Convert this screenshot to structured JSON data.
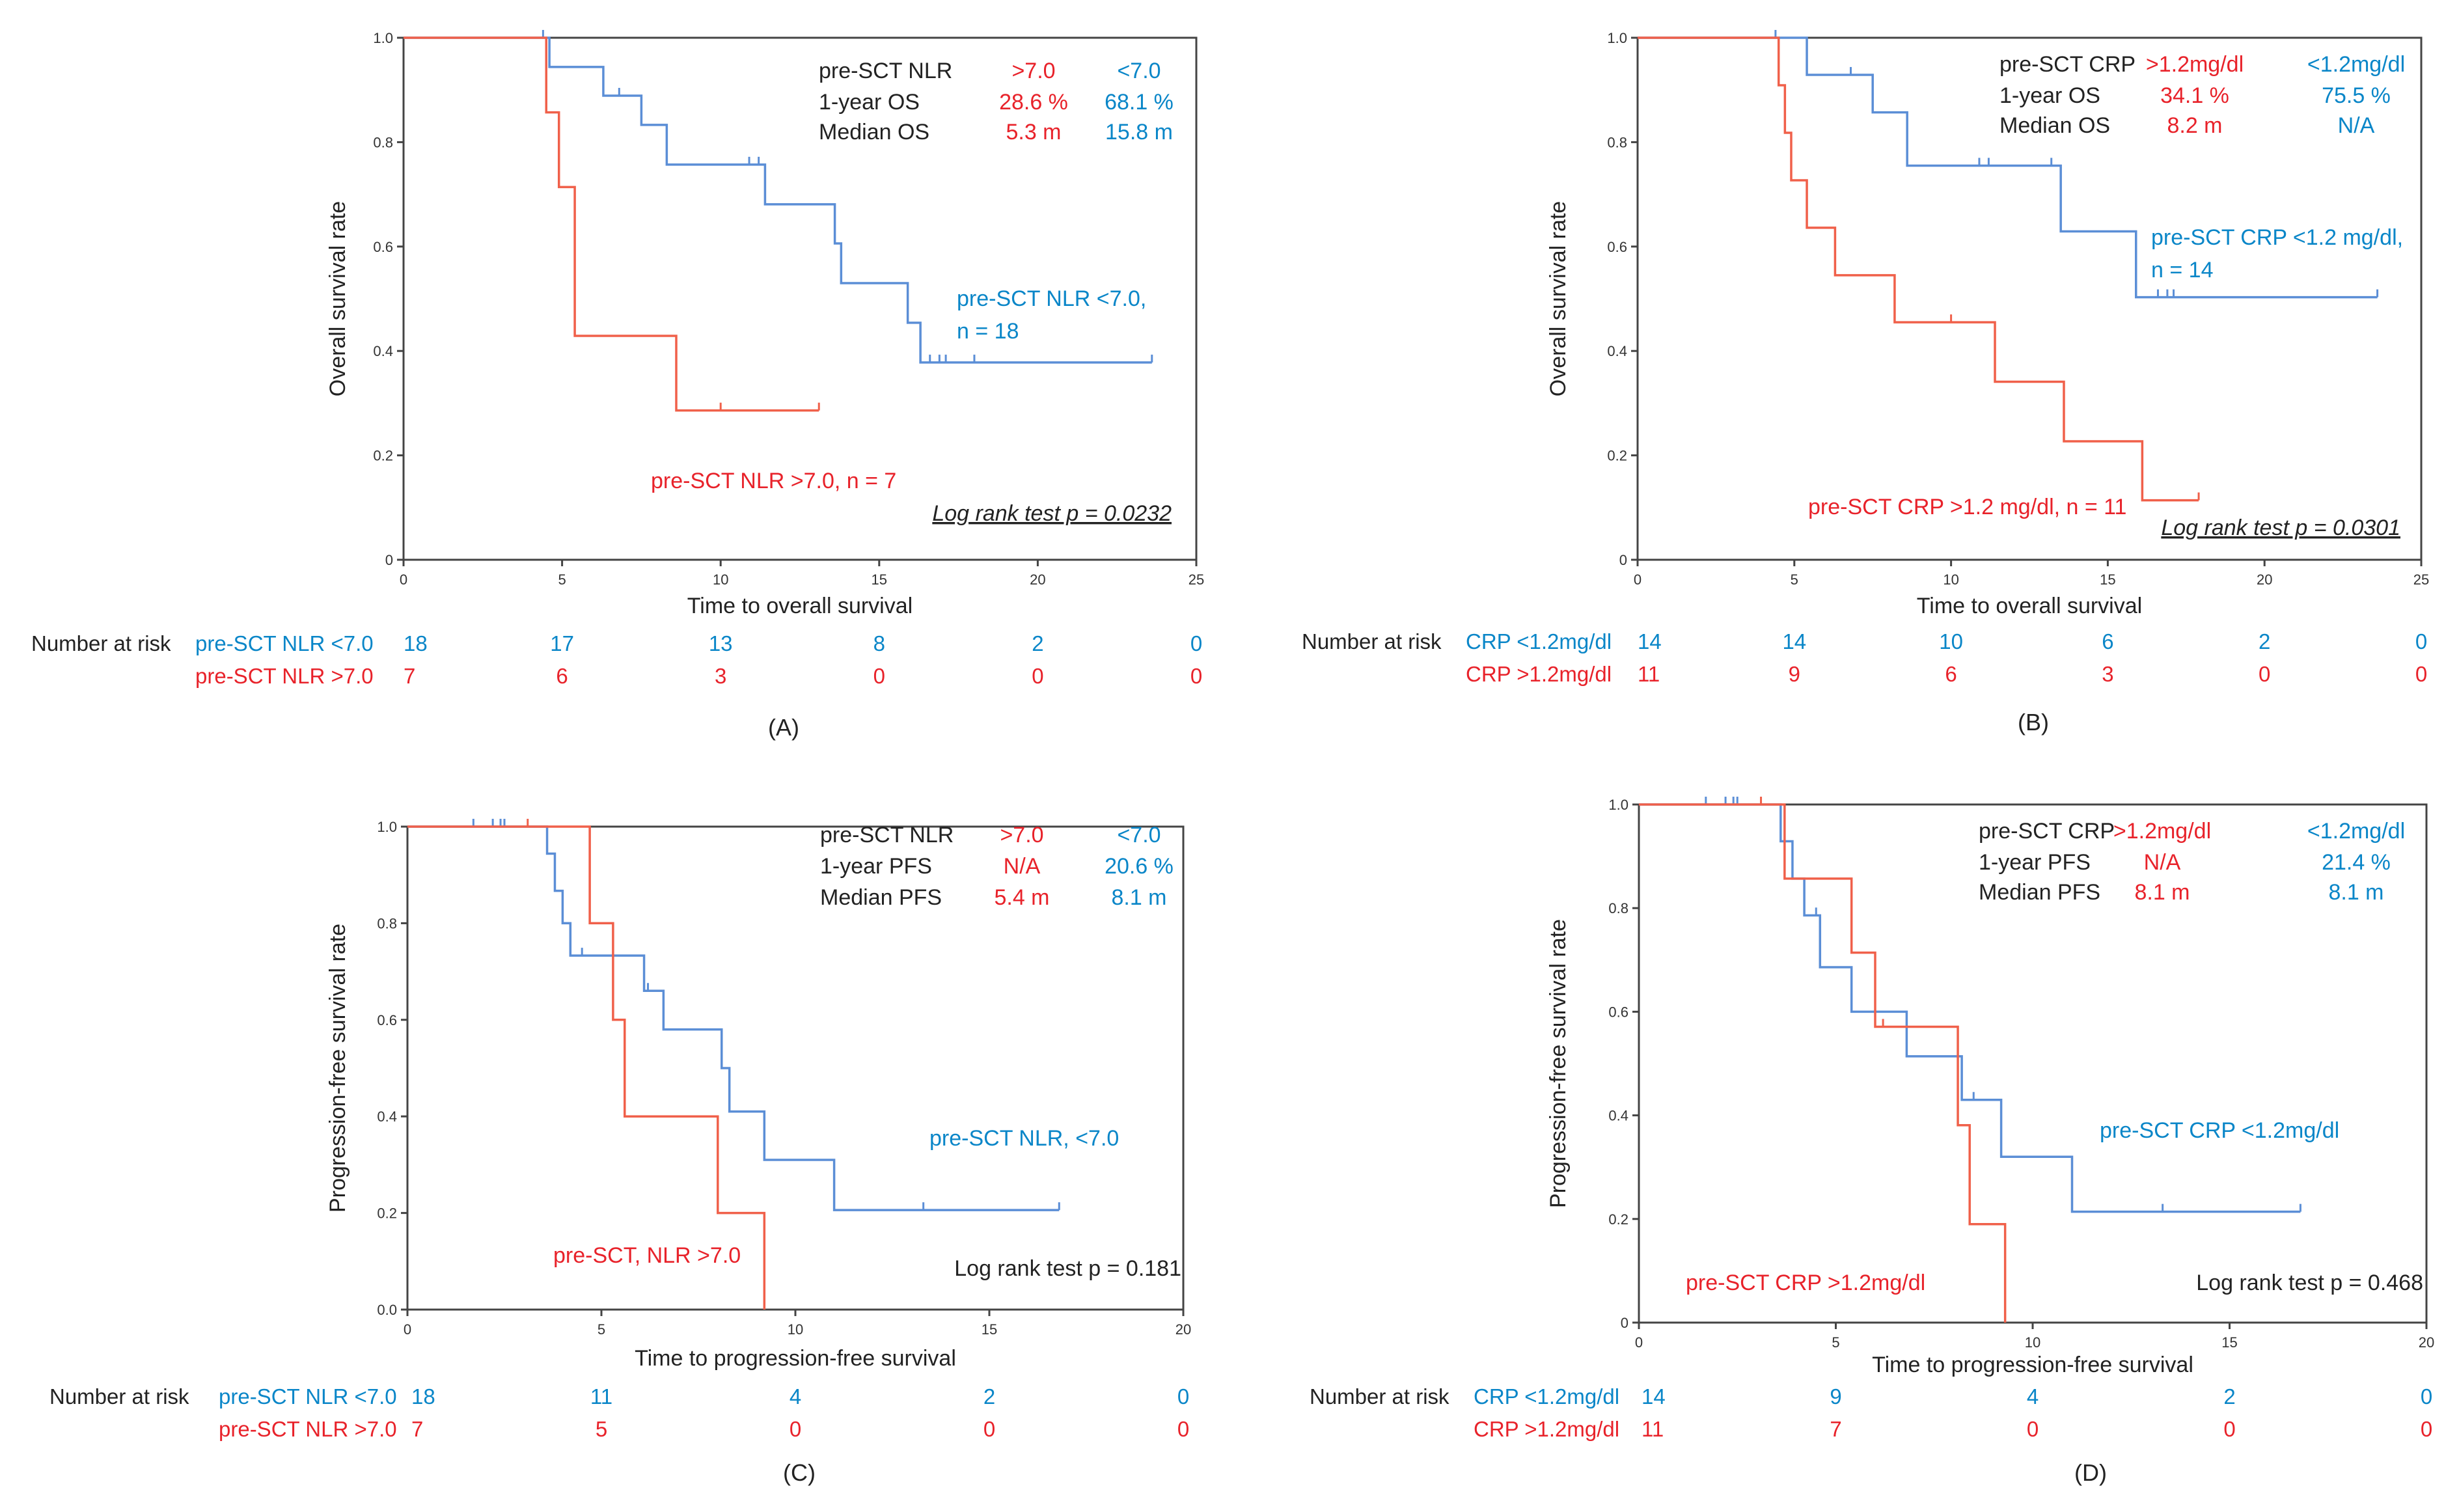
{
  "chart_data": [
    {
      "type": "line",
      "step": true,
      "panel_label": "(A)",
      "ylabel": "Overall survival rate",
      "xlabel": "Time to overall survival",
      "xlim": [
        0,
        25
      ],
      "ylim": [
        0,
        1
      ],
      "xticks": [
        "0",
        "5",
        "10",
        "15",
        "20",
        "25"
      ],
      "yticks": [
        "0",
        "0.2",
        "0.4",
        "0.6",
        "0.8",
        "1.0"
      ],
      "legend_table": [
        [
          "pre-SCT NLR",
          ">7.0",
          "<7.0"
        ],
        [
          "1-year OS",
          "28.6 %",
          "68.1 %"
        ],
        [
          "Median OS",
          "5.3 m",
          "15.8 m"
        ]
      ],
      "series": [
        {
          "name": "pre-SCT NLR <7.0, n = 18",
          "label_lines": [
            "pre-SCT NLR <7.0,",
            "n = 18"
          ],
          "color": "#0a86c8",
          "x": [
            0,
            4.6,
            6.3,
            7.5,
            8.3,
            11.4,
            13.6,
            13.8,
            15.9,
            16.3,
            23.6
          ],
          "y": [
            1.0,
            0.944,
            0.889,
            0.833,
            0.757,
            0.681,
            0.606,
            0.53,
            0.454,
            0.378,
            0.378
          ],
          "censored": [
            [
              4.4,
              1.0
            ],
            [
              6.8,
              0.889
            ],
            [
              10.9,
              0.757
            ],
            [
              11.2,
              0.757
            ],
            [
              16.6,
              0.378
            ],
            [
              16.9,
              0.378
            ],
            [
              17.1,
              0.378
            ],
            [
              18.0,
              0.378
            ],
            [
              23.6,
              0.378
            ]
          ]
        },
        {
          "name": "pre-SCT NLR >7.0, n = 7",
          "label_lines": [
            "pre-SCT NLR >7.0, n = 7"
          ],
          "color": "#e8222a",
          "x": [
            0,
            4.5,
            4.9,
            5.4,
            8.6,
            13.1
          ],
          "y": [
            1.0,
            0.857,
            0.714,
            0.429,
            0.286,
            0.286
          ],
          "censored": [
            [
              10.0,
              0.286
            ],
            [
              13.1,
              0.286
            ]
          ]
        }
      ],
      "annotation": "Log rank test p = 0.0232",
      "risk_table": {
        "title": "Number at risk",
        "times": [
          0,
          5,
          10,
          15,
          20,
          25
        ],
        "rows": [
          {
            "label": "pre-SCT NLR <7.0",
            "color": "#0a86c8",
            "values": [
              "18",
              "17",
              "13",
              "8",
              "2",
              "0"
            ]
          },
          {
            "label": "pre-SCT NLR >7.0",
            "color": "#e8222a",
            "values": [
              "7",
              "6",
              "3",
              "0",
              "0",
              "0"
            ]
          }
        ]
      }
    },
    {
      "type": "line",
      "step": true,
      "panel_label": "(B)",
      "ylabel": "Overall survival rate",
      "xlabel": "Time to overall survival",
      "xlim": [
        0,
        25
      ],
      "ylim": [
        0,
        1
      ],
      "xticks": [
        "0",
        "5",
        "10",
        "15",
        "20",
        "25"
      ],
      "yticks": [
        "0",
        "0.2",
        "0.4",
        "0.6",
        "0.8",
        "1.0"
      ],
      "legend_table": [
        [
          "pre-SCT CRP",
          ">1.2mg/dl",
          "<1.2mg/dl"
        ],
        [
          "1-year OS",
          "34.1 %",
          "75.5 %"
        ],
        [
          "Median OS",
          "8.2 m",
          "N/A"
        ]
      ],
      "series": [
        {
          "name": "pre-SCT CRP <1.2 mg/dl, n = 14",
          "label_lines": [
            "pre-SCT CRP <1.2 mg/dl,",
            "n = 14"
          ],
          "color": "#0a86c8",
          "x": [
            0,
            5.4,
            7.5,
            8.6,
            13.5,
            15.9,
            23.6
          ],
          "y": [
            1.0,
            0.929,
            0.857,
            0.755,
            0.629,
            0.503,
            0.503
          ],
          "censored": [
            [
              4.4,
              1.0
            ],
            [
              6.8,
              0.929
            ],
            [
              10.9,
              0.755
            ],
            [
              11.2,
              0.755
            ],
            [
              13.2,
              0.755
            ],
            [
              16.6,
              0.503
            ],
            [
              16.9,
              0.503
            ],
            [
              17.1,
              0.503
            ],
            [
              23.6,
              0.503
            ]
          ]
        },
        {
          "name": "pre-SCT CRP >1.2 mg/dl, n = 11",
          "label_lines": [
            "pre-SCT CRP >1.2 mg/dl, n = 11"
          ],
          "color": "#e8222a",
          "x": [
            0,
            4.5,
            4.7,
            4.9,
            5.4,
            6.3,
            8.2,
            11.4,
            13.6,
            16.1,
            17.9
          ],
          "y": [
            1.0,
            0.909,
            0.818,
            0.727,
            0.636,
            0.545,
            0.455,
            0.341,
            0.227,
            0.114,
            0.114
          ],
          "censored": [
            [
              10.0,
              0.455
            ],
            [
              17.9,
              0.114
            ]
          ]
        }
      ],
      "annotation": "Log rank test p = 0.0301",
      "risk_table": {
        "title": "Number at risk",
        "times": [
          0,
          5,
          10,
          15,
          20,
          25
        ],
        "rows": [
          {
            "label": "CRP <1.2mg/dl",
            "color": "#0a86c8",
            "values": [
              "14",
              "14",
              "10",
              "6",
              "2",
              "0"
            ]
          },
          {
            "label": "CRP >1.2mg/dl",
            "color": "#e8222a",
            "values": [
              "11",
              "9",
              "6",
              "3",
              "0",
              "0"
            ]
          }
        ]
      }
    },
    {
      "type": "line",
      "step": true,
      "panel_label": "(C)",
      "ylabel": "Progression-free survival rate",
      "xlabel": "Time to progression-free survival",
      "xlim": [
        0,
        20
      ],
      "ylim": [
        0,
        1
      ],
      "xticks": [
        "0",
        "5",
        "10",
        "15",
        "20"
      ],
      "yticks": [
        "0.0",
        "0.2",
        "0.4",
        "0.6",
        "0.8",
        "1.0"
      ],
      "legend_table": [
        [
          "pre-SCT NLR",
          ">7.0",
          "<7.0"
        ],
        [
          "1-year PFS",
          "N/A",
          "20.6 %"
        ],
        [
          "Median PFS",
          "5.4 m",
          "8.1 m"
        ]
      ],
      "series": [
        {
          "name": "pre-SCT NLR, <7.0",
          "label_lines": [
            "pre-SCT NLR,  <7.0"
          ],
          "color": "#0a86c8",
          "x": [
            0,
            3.6,
            3.8,
            4.0,
            4.2,
            6.1,
            6.6,
            8.1,
            8.3,
            9.2,
            11.0,
            16.8
          ],
          "y": [
            1.0,
            0.944,
            0.867,
            0.8,
            0.733,
            0.66,
            0.58,
            0.5,
            0.41,
            0.31,
            0.206,
            0.206
          ],
          "censored": [
            [
              1.7,
              1.0
            ],
            [
              2.2,
              1.0
            ],
            [
              2.4,
              1.0
            ],
            [
              2.5,
              1.0
            ],
            [
              4.5,
              0.733
            ],
            [
              6.2,
              0.66
            ],
            [
              13.3,
              0.206
            ],
            [
              16.8,
              0.206
            ]
          ]
        },
        {
          "name": "pre-SCT, NLR >7.0",
          "label_lines": [
            "pre-SCT, NLR  >7.0"
          ],
          "color": "#e8222a",
          "x": [
            0,
            4.7,
            5.3,
            5.6,
            8.0,
            9.2
          ],
          "y": [
            1.0,
            0.8,
            0.6,
            0.4,
            0.2,
            0.0
          ],
          "censored": [
            [
              3.1,
              1.0
            ]
          ]
        }
      ],
      "annotation": "Log rank test p = 0.181",
      "risk_table": {
        "title": "Number at risk",
        "times": [
          0,
          5,
          10,
          15,
          20
        ],
        "rows": [
          {
            "label": "pre-SCT NLR <7.0",
            "color": "#0a86c8",
            "values": [
              "18",
              "11",
              "4",
              "2",
              "0"
            ]
          },
          {
            "label": "pre-SCT NLR >7.0",
            "color": "#e8222a",
            "values": [
              "7",
              "5",
              "0",
              "0",
              "0"
            ]
          }
        ]
      }
    },
    {
      "type": "line",
      "step": true,
      "panel_label": "(D)",
      "ylabel": "Progression-free survival rate",
      "xlabel": "Time to progression-free survival",
      "xlim": [
        0,
        20
      ],
      "ylim": [
        0,
        1
      ],
      "xticks": [
        "0",
        "5",
        "10",
        "15",
        "20"
      ],
      "yticks": [
        "0",
        "0.2",
        "0.4",
        "0.6",
        "0.8",
        "1.0"
      ],
      "legend_table": [
        [
          "pre-SCT CRP",
          ">1.2mg/dl",
          "<1.2mg/dl"
        ],
        [
          "1-year PFS",
          "N/A",
          "21.4 %"
        ],
        [
          "Median PFS",
          "8.1 m",
          "8.1 m"
        ]
      ],
      "series": [
        {
          "name": "pre-SCT CRP <1.2mg/dl",
          "label_lines": [
            "pre-SCT CRP  <1.2mg/dl"
          ],
          "color": "#0a86c8",
          "x": [
            0,
            3.6,
            3.9,
            4.2,
            4.6,
            5.4,
            6.8,
            8.2,
            9.2,
            11.0,
            16.8
          ],
          "y": [
            1.0,
            0.929,
            0.857,
            0.786,
            0.686,
            0.6,
            0.514,
            0.43,
            0.32,
            0.214,
            0.214
          ],
          "censored": [
            [
              1.7,
              1.0
            ],
            [
              2.2,
              1.0
            ],
            [
              2.4,
              1.0
            ],
            [
              2.5,
              1.0
            ],
            [
              4.5,
              0.786
            ],
            [
              8.5,
              0.43
            ],
            [
              13.3,
              0.214
            ],
            [
              16.8,
              0.214
            ]
          ]
        },
        {
          "name": "pre-SCT CRP >1.2mg/dl",
          "label_lines": [
            "pre-SCT CRP >1.2mg/dl"
          ],
          "color": "#e8222a",
          "x": [
            0,
            3.7,
            5.4,
            6.0,
            8.1,
            8.4,
            9.3
          ],
          "y": [
            1.0,
            0.857,
            0.714,
            0.571,
            0.381,
            0.19,
            0.0
          ],
          "censored": [
            [
              3.1,
              1.0
            ],
            [
              6.2,
              0.571
            ]
          ]
        }
      ],
      "annotation": "Log rank test p = 0.468",
      "risk_table": {
        "title": "Number at risk",
        "times": [
          0,
          5,
          10,
          15,
          20
        ],
        "rows": [
          {
            "label": "CRP <1.2mg/dl",
            "color": "#0a86c8",
            "values": [
              "14",
              "9",
              "4",
              "2",
              "0"
            ]
          },
          {
            "label": "CRP >1.2mg/dl",
            "color": "#e8222a",
            "values": [
              "11",
              "7",
              "0",
              "0",
              "0"
            ]
          }
        ]
      }
    }
  ]
}
